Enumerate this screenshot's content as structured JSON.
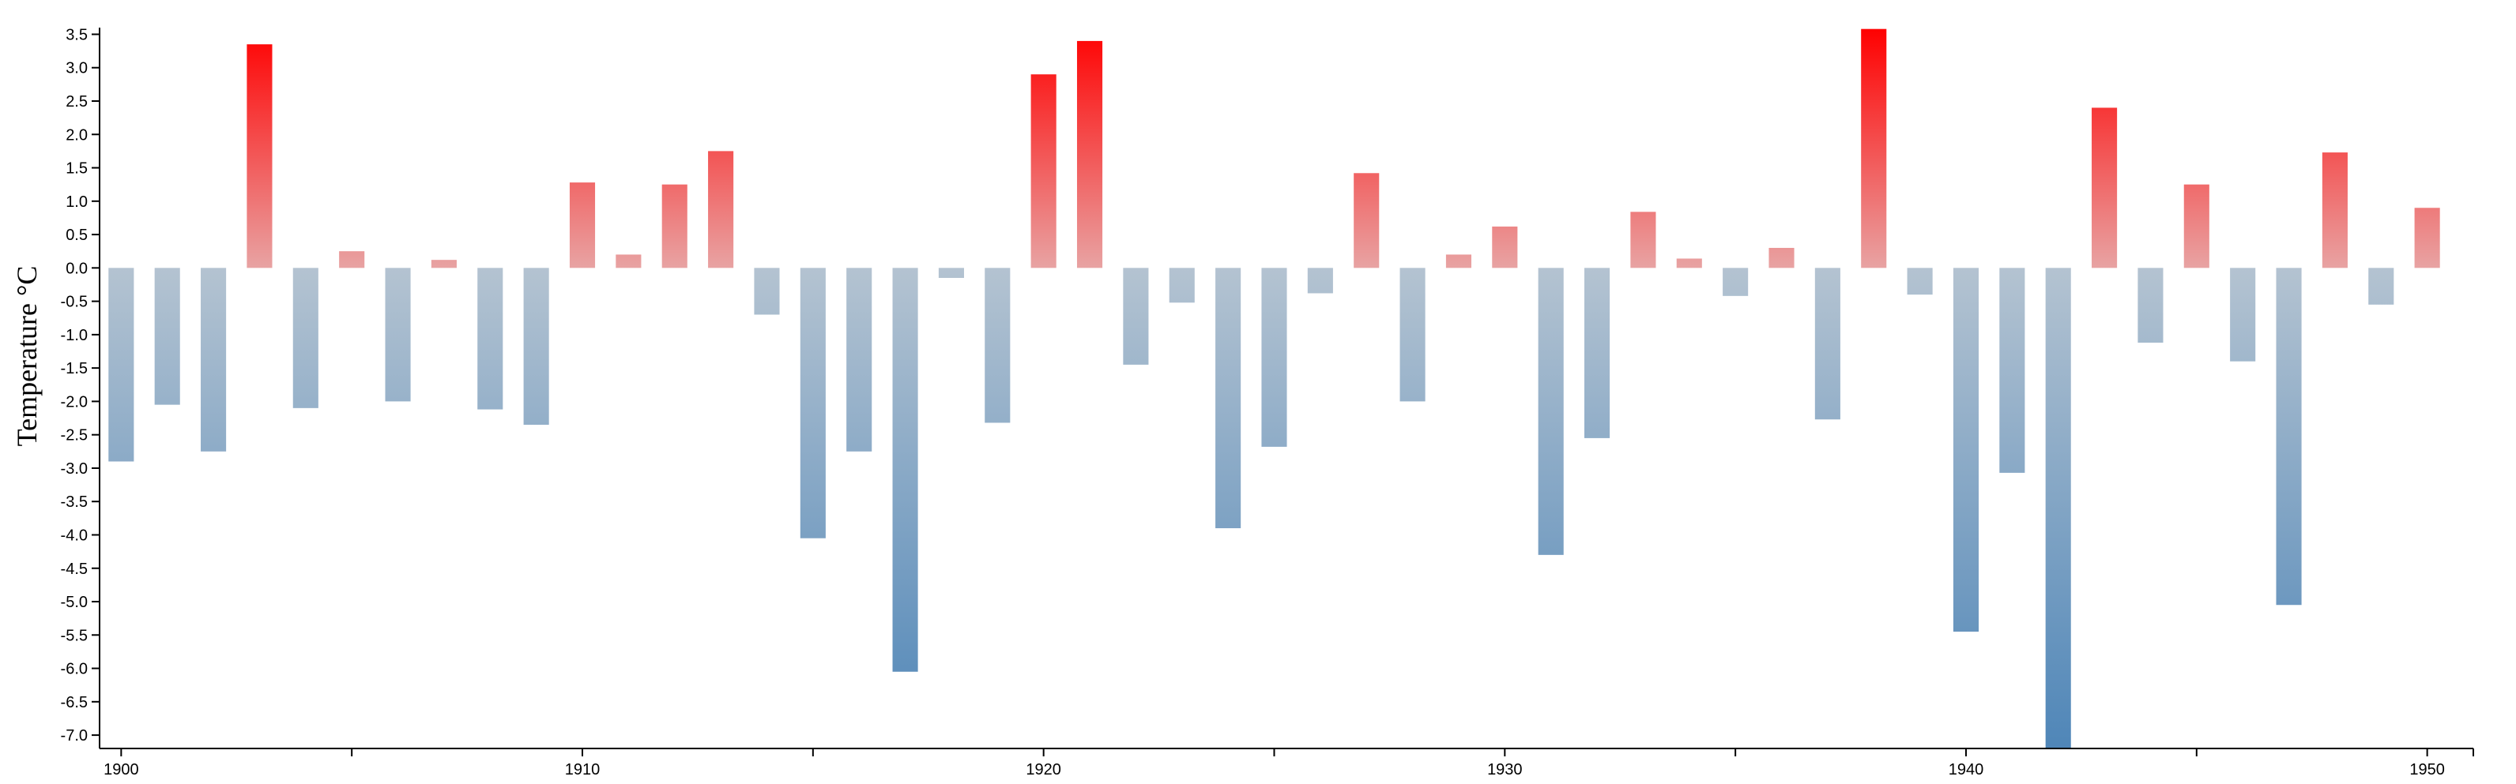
{
  "chart_data": {
    "type": "bar",
    "title": "",
    "xlabel": "",
    "ylabel": "Temperature °C",
    "ylim": [
      -7.2,
      3.6
    ],
    "y_ticks": [
      3.5,
      3.0,
      2.5,
      2.0,
      1.5,
      1.0,
      0.5,
      0.0,
      -0.5,
      -1.0,
      -1.5,
      -2.0,
      -2.5,
      -3.0,
      -3.5,
      -4.0,
      -4.5,
      -5.0,
      -5.5,
      -6.0,
      -6.5,
      -7.0
    ],
    "y_tick_labels": [
      "3.5",
      "3.0",
      "2.5",
      "2.0",
      "1.5",
      "1.0",
      "0.5",
      "0.0",
      "-0.5",
      "-1.0",
      "-1.5",
      "-2.0",
      "-2.5",
      "-3.0",
      "-3.5",
      "-4.0",
      "-4.5",
      "-5.0",
      "-5.5",
      "-6.0",
      "-6.5",
      "-7.0"
    ],
    "x_range": [
      1899.6,
      1951
    ],
    "x_tick_labels": [
      "1900",
      "1910",
      "1920",
      "1930",
      "1940",
      "1950"
    ],
    "x_labeled_ticks": [
      1900,
      1910,
      1920,
      1930,
      1940,
      1950
    ],
    "x_minor_ticks": [
      1905,
      1915,
      1925,
      1935,
      1945
    ],
    "grid": false,
    "colors": {
      "positive_strong": "#ff0000",
      "positive_weak": "#e8a3a3",
      "negative_weak": "#b4c3d1",
      "negative_strong": "#4f86b8"
    },
    "series": [
      {
        "x": [
          1900,
          1901,
          1902,
          1903,
          1904,
          1905,
          1906,
          1907,
          1908,
          1909,
          1910,
          1911,
          1912,
          1913,
          1914,
          1915,
          1916,
          1917,
          1918,
          1919,
          1920,
          1921,
          1922,
          1923,
          1924,
          1925,
          1926,
          1927,
          1928,
          1929,
          1930,
          1931,
          1932,
          1933,
          1934,
          1935,
          1936,
          1937,
          1938,
          1939,
          1940,
          1941,
          1942,
          1943,
          1944,
          1945,
          1946,
          1947,
          1948,
          1949,
          1950
        ],
        "values": [
          -2.9,
          -2.05,
          -2.75,
          3.35,
          -2.1,
          0.25,
          -2.0,
          0.12,
          -2.12,
          -2.35,
          1.28,
          0.2,
          1.25,
          1.75,
          -0.7,
          -4.05,
          -2.75,
          -6.05,
          -0.15,
          -2.32,
          2.9,
          3.4,
          -1.45,
          -0.52,
          -3.9,
          -2.68,
          -0.38,
          1.42,
          -2.0,
          0.2,
          0.62,
          -4.3,
          -2.55,
          0.84,
          0.14,
          -0.42,
          0.3,
          -2.27,
          3.58,
          -0.4,
          -5.45,
          -3.07,
          -7.2,
          2.4,
          -1.12,
          1.25,
          -1.4,
          -5.05,
          1.73,
          -0.55,
          0.9
        ]
      }
    ]
  }
}
